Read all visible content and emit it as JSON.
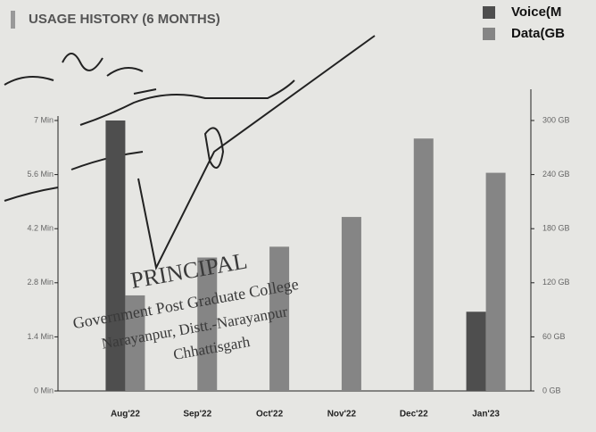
{
  "chart_data": {
    "type": "bar",
    "title": "USAGE HISTORY (6 MONTHS)",
    "categories": [
      "Aug'22",
      "Sep'22",
      "Oct'22",
      "Nov'22",
      "Dec'22",
      "Jan'23"
    ],
    "series": [
      {
        "name": "Voice(M",
        "color": "#4e4e4e",
        "values": [
          7.0,
          null,
          null,
          null,
          null,
          2.05
        ]
      },
      {
        "name": "Data(GB",
        "color": "#858585",
        "axis": "y2",
        "values": [
          106,
          148,
          160,
          193,
          280,
          242
        ]
      }
    ],
    "ylim": [
      0,
      7
    ],
    "yticks": [
      {
        "value": 0,
        "label": "0 Min"
      },
      {
        "value": 1.4,
        "label": "1.4 Min"
      },
      {
        "value": 2.8,
        "label": "2.8 Min"
      },
      {
        "value": 4.2,
        "label": "4.2 Min"
      },
      {
        "value": 5.6,
        "label": "5.6 Min"
      },
      {
        "value": 7,
        "label": "7 Min"
      }
    ],
    "y2lim": [
      0,
      300
    ],
    "y2ticks": [
      {
        "value": 0,
        "label": "0 GB"
      },
      {
        "value": 60,
        "label": "60 GB"
      },
      {
        "value": 120,
        "label": "120 GB"
      },
      {
        "value": 180,
        "label": "180 GB"
      },
      {
        "value": 240,
        "label": "240 GB"
      },
      {
        "value": 300,
        "label": "300 GB"
      }
    ],
    "legend": "top-right",
    "annotations": [
      "PRINCIPAL",
      "Government Post Graduate College",
      "Narayanpur, Distt.-Narayanpur",
      "Chhattisgarh"
    ]
  }
}
